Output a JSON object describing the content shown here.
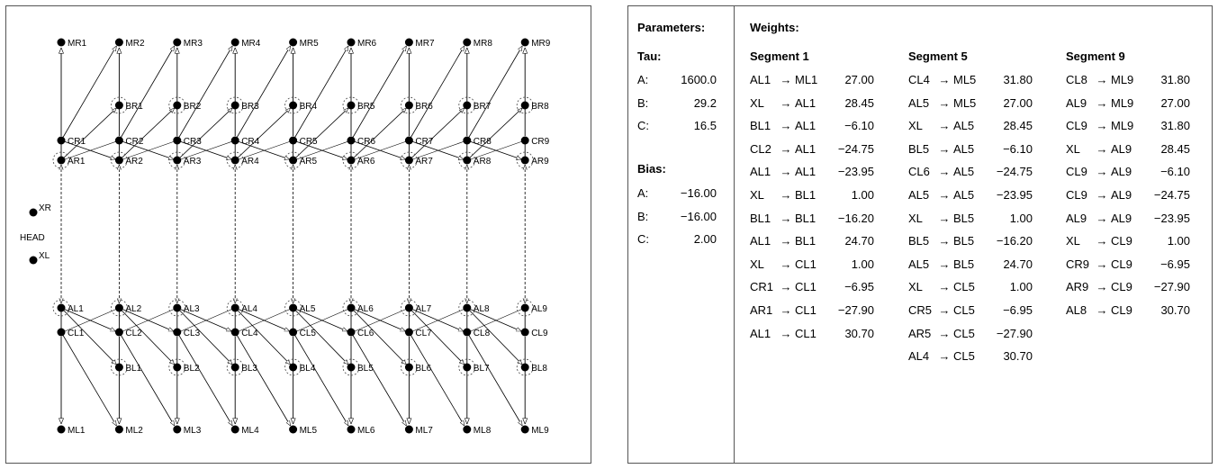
{
  "diagram": {
    "segments": [
      "1",
      "2",
      "3",
      "4",
      "5",
      "6",
      "7",
      "8",
      "9"
    ],
    "head_label": "HEAD",
    "head_neurons": [
      "XR",
      "XL"
    ],
    "top_rows": [
      "MR",
      "BR",
      "CR",
      "AR"
    ],
    "bottom_rows": [
      "AL",
      "CL",
      "BL",
      "ML"
    ]
  },
  "params": {
    "parameters_title": "Parameters:",
    "tau_title": "Tau:",
    "tau": [
      {
        "label": "A:",
        "value": "1600.0"
      },
      {
        "label": "B:",
        "value": "29.2"
      },
      {
        "label": "C:",
        "value": "16.5"
      }
    ],
    "bias_title": "Bias:",
    "bias": [
      {
        "label": "A:",
        "value": "−16.00"
      },
      {
        "label": "B:",
        "value": "−16.00"
      },
      {
        "label": "C:",
        "value": "2.00"
      }
    ]
  },
  "weights": {
    "title": "Weights:",
    "arrow": "→",
    "groups": [
      {
        "title": "Segment 1",
        "rows": [
          {
            "from": "AL1",
            "to": "ML1",
            "w": "27.00"
          },
          {
            "from": "XL",
            "to": "AL1",
            "w": "28.45"
          },
          {
            "from": "BL1",
            "to": "AL1",
            "w": "−6.10"
          },
          {
            "from": "CL2",
            "to": "AL1",
            "w": "−24.75"
          },
          {
            "from": "AL1",
            "to": "AL1",
            "w": "−23.95"
          },
          {
            "from": "XL",
            "to": "BL1",
            "w": "1.00"
          },
          {
            "from": "BL1",
            "to": "BL1",
            "w": "−16.20"
          },
          {
            "from": "AL1",
            "to": "BL1",
            "w": "24.70"
          },
          {
            "from": "XL",
            "to": "CL1",
            "w": "1.00"
          },
          {
            "from": "CR1",
            "to": "CL1",
            "w": "−6.95"
          },
          {
            "from": "AR1",
            "to": "CL1",
            "w": "−27.90"
          },
          {
            "from": "AL1",
            "to": "CL1",
            "w": "30.70"
          }
        ]
      },
      {
        "title": "Segment 5",
        "rows": [
          {
            "from": "CL4",
            "to": "ML5",
            "w": "31.80"
          },
          {
            "from": "AL5",
            "to": "ML5",
            "w": "27.00"
          },
          {
            "from": "XL",
            "to": "AL5",
            "w": "28.45"
          },
          {
            "from": "BL5",
            "to": "AL5",
            "w": "−6.10"
          },
          {
            "from": "CL6",
            "to": "AL5",
            "w": "−24.75"
          },
          {
            "from": "AL5",
            "to": "AL5",
            "w": "−23.95"
          },
          {
            "from": "XL",
            "to": "BL5",
            "w": "1.00"
          },
          {
            "from": "BL5",
            "to": "BL5",
            "w": "−16.20"
          },
          {
            "from": "AL5",
            "to": "BL5",
            "w": "24.70"
          },
          {
            "from": "XL",
            "to": "CL5",
            "w": "1.00"
          },
          {
            "from": "CR5",
            "to": "CL5",
            "w": "−6.95"
          },
          {
            "from": "AR5",
            "to": "CL5",
            "w": "−27.90"
          },
          {
            "from": "AL4",
            "to": "CL5",
            "w": "30.70"
          }
        ]
      },
      {
        "title": "Segment 9",
        "rows": [
          {
            "from": "CL8",
            "to": "ML9",
            "w": "31.80"
          },
          {
            "from": "AL9",
            "to": "ML9",
            "w": "27.00"
          },
          {
            "from": "CL9",
            "to": "ML9",
            "w": "31.80"
          },
          {
            "from": "XL",
            "to": "AL9",
            "w": "28.45"
          },
          {
            "from": "CL9",
            "to": "AL9",
            "w": "−6.10"
          },
          {
            "from": "CL9",
            "to": "AL9",
            "w": "−24.75"
          },
          {
            "from": "AL9",
            "to": "AL9",
            "w": "−23.95"
          },
          {
            "from": "XL",
            "to": "CL9",
            "w": "1.00"
          },
          {
            "from": "CR9",
            "to": "CL9",
            "w": "−6.95"
          },
          {
            "from": "AR9",
            "to": "CL9",
            "w": "−27.90"
          },
          {
            "from": "AL8",
            "to": "CL9",
            "w": "30.70"
          }
        ]
      }
    ]
  }
}
